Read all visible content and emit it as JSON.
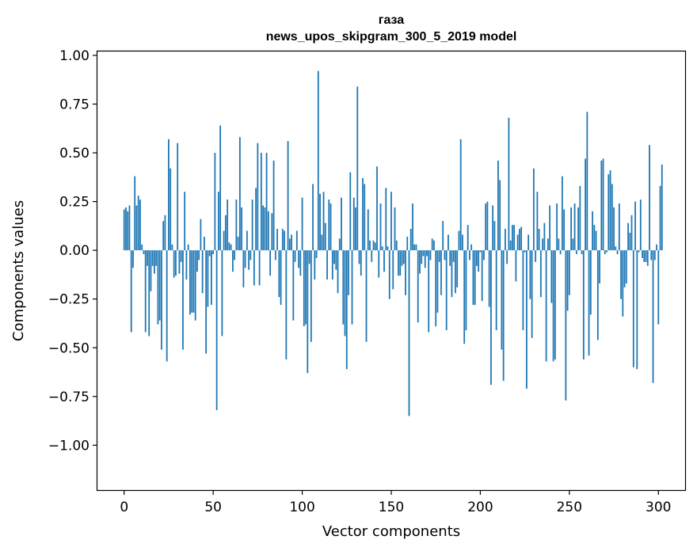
{
  "chart_data": {
    "type": "bar",
    "title_line1": "газа",
    "title_line2": "news_upos_skipgram_300_5_2019 model",
    "xlabel": "Vector components",
    "ylabel": "Components values",
    "xlim": [
      -15,
      315
    ],
    "ylim": [
      -1.23,
      1.02
    ],
    "xticks": [
      0,
      50,
      100,
      150,
      200,
      250,
      300
    ],
    "xtick_labels": [
      "0",
      "50",
      "100",
      "150",
      "200",
      "250",
      "300"
    ],
    "yticks": [
      1.0,
      0.75,
      0.5,
      0.25,
      0.0,
      -0.25,
      -0.5,
      -0.75,
      -1.0
    ],
    "ytick_labels": [
      "1.00",
      "0.75",
      "0.50",
      "0.25",
      "0.00",
      "−0.25",
      "−0.50",
      "−0.75",
      "−1.00"
    ],
    "bar_color": "#1f77b4",
    "values": [
      0.21,
      0.22,
      0.2,
      0.23,
      -0.42,
      -0.09,
      0.38,
      0.23,
      0.28,
      0.26,
      0.03,
      -0.02,
      -0.42,
      -0.08,
      -0.44,
      -0.21,
      -0.08,
      -0.12,
      -0.08,
      -0.38,
      -0.36,
      -0.51,
      0.15,
      0.18,
      -0.57,
      0.57,
      0.42,
      0.03,
      -0.14,
      -0.13,
      0.55,
      -0.12,
      -0.06,
      -0.51,
      0.3,
      -0.15,
      0.03,
      -0.33,
      -0.32,
      -0.32,
      -0.36,
      -0.11,
      -0.05,
      0.16,
      -0.22,
      0.07,
      -0.53,
      -0.29,
      -0.03,
      -0.28,
      -0.02,
      0.5,
      -0.82,
      0.3,
      0.64,
      -0.44,
      0.1,
      0.18,
      0.26,
      0.04,
      0.03,
      -0.11,
      -0.05,
      0.26,
      0.07,
      0.58,
      0.22,
      -0.19,
      -0.09,
      0.1,
      -0.1,
      -0.05,
      0.26,
      -0.18,
      0.32,
      0.55,
      -0.18,
      0.5,
      0.23,
      0.22,
      0.5,
      0.2,
      -0.13,
      0.19,
      0.46,
      -0.05,
      0.11,
      -0.24,
      -0.28,
      0.11,
      0.1,
      -0.56,
      0.56,
      0.06,
      0.08,
      -0.36,
      -0.06,
      0.1,
      -0.09,
      -0.13,
      0.27,
      -0.39,
      -0.38,
      -0.63,
      -0.07,
      -0.47,
      0.34,
      -0.15,
      -0.04,
      0.92,
      0.29,
      0.08,
      0.3,
      0.14,
      -0.15,
      0.26,
      0.24,
      -0.15,
      -0.07,
      -0.1,
      -0.22,
      0.06,
      0.27,
      -0.38,
      -0.44,
      -0.61,
      -0.23,
      0.4,
      -0.38,
      0.27,
      0.22,
      0.84,
      -0.07,
      -0.13,
      0.37,
      0.34,
      -0.47,
      0.21,
      0.05,
      -0.06,
      0.05,
      0.04,
      0.43,
      -0.14,
      0.24,
      0.02,
      -0.11,
      0.32,
      0.02,
      -0.25,
      0.3,
      -0.2,
      0.22,
      0.05,
      -0.13,
      -0.13,
      -0.08,
      -0.07,
      -0.23,
      0.07,
      -0.85,
      0.11,
      0.24,
      0.03,
      0.03,
      -0.37,
      -0.12,
      -0.07,
      -0.03,
      -0.09,
      -0.03,
      -0.42,
      -0.05,
      0.06,
      0.05,
      -0.39,
      -0.32,
      -0.06,
      -0.23,
      0.15,
      -0.05,
      -0.41,
      0.08,
      -0.08,
      -0.24,
      -0.06,
      -0.22,
      -0.19,
      0.1,
      0.57,
      0.08,
      -0.48,
      -0.41,
      0.13,
      -0.05,
      0.03,
      -0.28,
      -0.28,
      -0.08,
      -0.11,
      -0.01,
      -0.26,
      -0.05,
      0.24,
      0.25,
      -0.29,
      -0.69,
      0.23,
      0.15,
      -0.41,
      0.46,
      0.36,
      -0.51,
      -0.67,
      0.11,
      -0.07,
      0.68,
      0.05,
      0.13,
      0.13,
      -0.16,
      0.08,
      0.11,
      0.12,
      -0.41,
      -0.01,
      -0.71,
      0.08,
      -0.25,
      -0.45,
      0.42,
      -0.06,
      0.3,
      0.11,
      -0.24,
      0.06,
      0.14,
      -0.57,
      0.06,
      0.23,
      -0.27,
      -0.57,
      -0.56,
      0.24,
      0.06,
      -0.02,
      0.38,
      0.21,
      -0.77,
      -0.31,
      -0.23,
      0.22,
      0.06,
      0.24,
      -0.02,
      0.22,
      0.33,
      -0.02,
      -0.56,
      0.47,
      0.71,
      -0.54,
      -0.33,
      0.2,
      0.13,
      0.1,
      -0.46,
      -0.17,
      0.46,
      0.47,
      -0.02,
      -0.01,
      0.39,
      0.41,
      0.34,
      0.22,
      0.02,
      -0.02,
      0.24,
      -0.25,
      -0.34,
      -0.19,
      -0.17,
      0.14,
      0.09,
      0.18,
      -0.6,
      0.25,
      -0.61,
      -0.01,
      0.26,
      -0.04,
      -0.06,
      -0.06,
      -0.08,
      0.54,
      -0.05,
      -0.68,
      -0.05,
      0.03,
      -0.38,
      0.33,
      0.44
    ]
  }
}
